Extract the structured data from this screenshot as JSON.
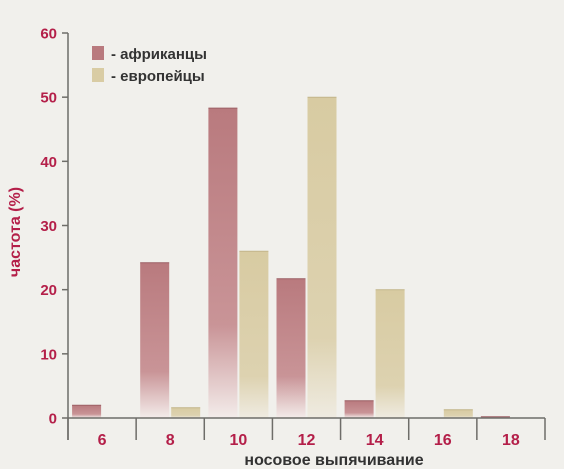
{
  "chart_data": {
    "type": "bar",
    "categories": [
      "6",
      "8",
      "10",
      "12",
      "14",
      "16",
      "18"
    ],
    "series": [
      {
        "name": "- африканцы",
        "values": [
          2,
          24.2,
          48.3,
          21.7,
          2.7,
          0,
          0.2
        ]
      },
      {
        "name": "- европейцы",
        "values": [
          0,
          1.6,
          26,
          50,
          20,
          1.3,
          0
        ]
      }
    ],
    "xlabel": "носовое выпячивание",
    "ylabel": "частота (%)",
    "ylim": [
      0,
      60
    ],
    "yticks": [
      0,
      10,
      20,
      30,
      40,
      50,
      60
    ],
    "grid": false,
    "legend_position": "top-left",
    "colors": {
      "series1": "#b97a7e",
      "series2": "#d9cca4",
      "tick_label": "#b41f49",
      "axis": "#6e6d69",
      "xlabel": "#333333",
      "background": "#f1f0ec"
    }
  }
}
